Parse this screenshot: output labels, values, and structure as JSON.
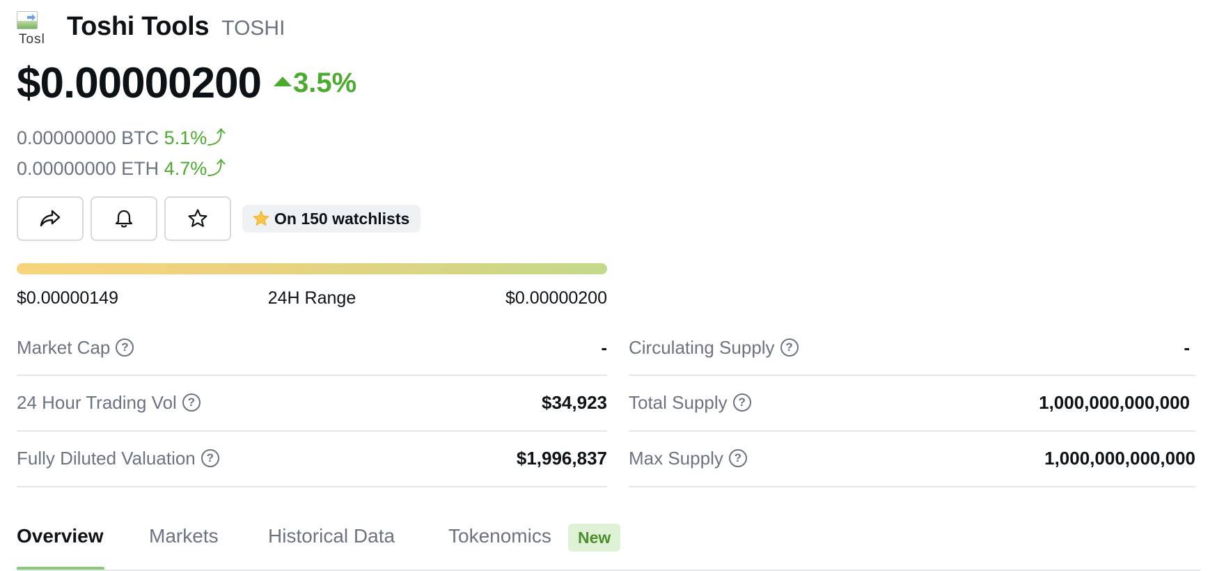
{
  "coin": {
    "logo_alt": "Tosl",
    "name": "Toshi Tools",
    "symbol": "TOSHI"
  },
  "price": {
    "usd": "$0.00000200",
    "change_24h": "3.5%",
    "change_direction": "up",
    "btc_value": "0.00000000 BTC",
    "btc_change": "5.1%",
    "eth_value": "0.00000000 ETH",
    "eth_change": "4.7%"
  },
  "actions": {
    "share_icon": "share-icon",
    "alert_icon": "bell-icon",
    "watch_icon": "star-icon",
    "watchlist_text": "On 150 watchlists"
  },
  "range": {
    "low": "$0.00000149",
    "label": "24H Range",
    "high": "$0.00000200"
  },
  "stats_left": [
    {
      "label": "Market Cap",
      "value": "-"
    },
    {
      "label": "24 Hour Trading Vol",
      "value": "$34,923"
    },
    {
      "label": "Fully Diluted Valuation",
      "value": "$1,996,837"
    }
  ],
  "stats_right": [
    {
      "label": "Circulating Supply",
      "value": "-"
    },
    {
      "label": "Total Supply",
      "value": "1,000,000,000,000"
    },
    {
      "label": "Max Supply",
      "value": "1,000,000,000,000"
    }
  ],
  "tabs": [
    {
      "label": "Overview",
      "active": true
    },
    {
      "label": "Markets",
      "active": false
    },
    {
      "label": "Historical Data",
      "active": false
    },
    {
      "label": "Tokenomics",
      "active": false
    }
  ],
  "tokenomics_badge": "New",
  "colors": {
    "positive": "#4bab2f",
    "accent_underline": "#8ac87c",
    "star": "#f7c54d"
  },
  "help_glyph": "?"
}
